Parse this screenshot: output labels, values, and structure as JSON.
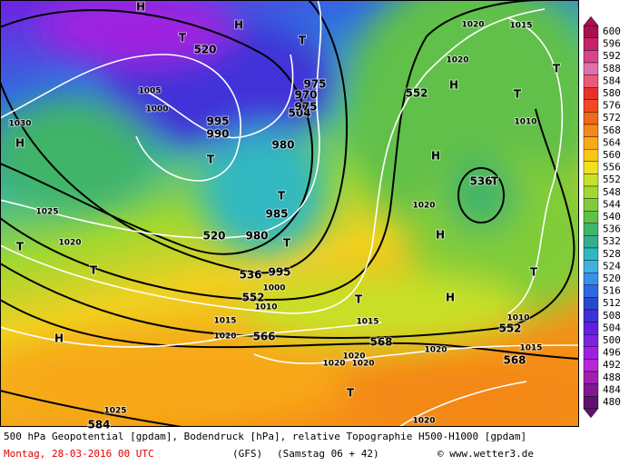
{
  "legend": {
    "levels": [
      600,
      596,
      592,
      588,
      584,
      580,
      576,
      572,
      568,
      564,
      560,
      556,
      552,
      548,
      544,
      540,
      536,
      532,
      528,
      524,
      520,
      516,
      512,
      508,
      504,
      500,
      496,
      492,
      488,
      484,
      480
    ],
    "colors": [
      "#a8104e",
      "#c8206a",
      "#d84488",
      "#e070a8",
      "#e85a78",
      "#e83028",
      "#f04820",
      "#f06818",
      "#f48818",
      "#f8a818",
      "#f8c818",
      "#f0e020",
      "#c8e028",
      "#a0d830",
      "#80cc38",
      "#60c048",
      "#40b468",
      "#30b090",
      "#30b8c0",
      "#40b0e0",
      "#3890e8",
      "#3068e0",
      "#2848d0",
      "#4030d8",
      "#6020e0",
      "#8020e0",
      "#a020e0",
      "#b828d8",
      "#a020b0",
      "#801890",
      "#601070"
    ]
  },
  "map_labels": [
    "H",
    "H",
    "T",
    "520",
    "T",
    "H",
    "1030",
    "1005",
    "1000",
    "995",
    "990",
    "T",
    "504",
    "975",
    "970",
    "975",
    "980",
    "552",
    "H",
    "1020",
    "1020",
    "1015",
    "T",
    "T",
    "1010",
    "H",
    "536",
    "T",
    "T",
    "985",
    "1020",
    "H",
    "1025",
    "1020",
    "T",
    "T",
    "520",
    "980",
    "T",
    "536",
    "995",
    "552",
    "1000",
    "1010",
    "T",
    "H",
    "T",
    "1010",
    "552",
    "1015",
    "1015",
    "1020",
    "566",
    "H",
    "568",
    "1020",
    "1015",
    "1020",
    "1020",
    "1020",
    "568",
    "T",
    "1025",
    "1020",
    "584"
  ],
  "footer": {
    "description": "500 hPa Geopotential [gpdam], Bodendruck [hPa], relative Topographie H500-H1000 [gpdam]",
    "date": "Montag, 28-03-2016  00 UTC",
    "model": "(GFS)",
    "run": "(Samstag 06 + 42)",
    "copyright": "© www.wetter3.de"
  }
}
